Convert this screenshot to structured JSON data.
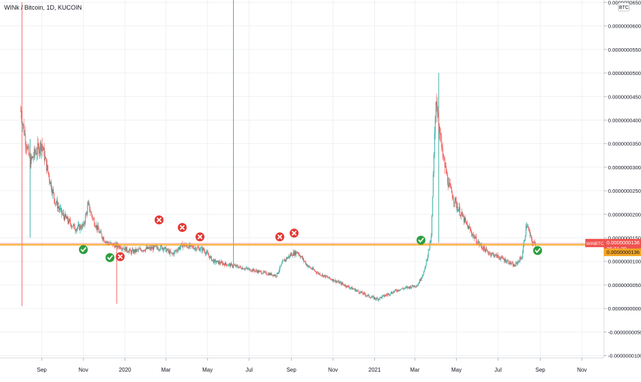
{
  "chart_data": {
    "type": "candlestick",
    "symbol_title": "WINk / Bitcoin, 1D, KUCOIN",
    "currency_badge": "BTC",
    "y_axis": {
      "ticks": [
        "0.0000000650",
        "0.0000000600",
        "0.0000000550",
        "0.0000000500",
        "0.0000000450",
        "0.0000000400",
        "0.0000000350",
        "0.0000000300",
        "0.0000000250",
        "0.0000000200",
        "0.0000000150",
        "0.0000000100",
        "0.0000000050",
        "0.0000000000",
        "-0.0000000050",
        "-0.0000000100"
      ],
      "min": -1.05e-08,
      "max": 6.55e-08
    },
    "x_axis": {
      "ticks": [
        "Sep",
        "Nov",
        "2020",
        "Mar",
        "May",
        "Jul",
        "Sep",
        "Nov",
        "2021",
        "Mar",
        "May",
        "Jul",
        "Sep",
        "Nov"
      ]
    },
    "support_line": 1.36e-08,
    "price_label": {
      "symbol": "WINBTC",
      "price": "0.0000000136",
      "countdown": "06:31:29",
      "line_price": "0.0000000136"
    },
    "series": [
      {
        "date": "2019-08-01",
        "value": 4.2e-08
      },
      {
        "date": "2019-08-08",
        "value": 3.6e-08
      },
      {
        "date": "2019-08-15",
        "value": 3.1e-08
      },
      {
        "date": "2019-08-22",
        "value": 3.3e-08
      },
      {
        "date": "2019-09-01",
        "value": 3.5e-08
      },
      {
        "date": "2019-09-10",
        "value": 2.9e-08
      },
      {
        "date": "2019-09-20",
        "value": 2.3e-08
      },
      {
        "date": "2019-10-01",
        "value": 2e-08
      },
      {
        "date": "2019-10-10",
        "value": 1.85e-08
      },
      {
        "date": "2019-10-20",
        "value": 1.7e-08
      },
      {
        "date": "2019-11-01",
        "value": 1.75e-08
      },
      {
        "date": "2019-11-08",
        "value": 2.2e-08
      },
      {
        "date": "2019-11-15",
        "value": 1.9e-08
      },
      {
        "date": "2019-11-25",
        "value": 1.6e-08
      },
      {
        "date": "2019-12-05",
        "value": 1.4e-08
      },
      {
        "date": "2019-12-15",
        "value": 1.35e-08
      },
      {
        "date": "2019-12-25",
        "value": 1.32e-08
      },
      {
        "date": "2020-01-10",
        "value": 1.2e-08
      },
      {
        "date": "2020-01-25",
        "value": 1.25e-08
      },
      {
        "date": "2020-02-10",
        "value": 1.28e-08
      },
      {
        "date": "2020-02-25",
        "value": 1.3e-08
      },
      {
        "date": "2020-03-10",
        "value": 1.15e-08
      },
      {
        "date": "2020-03-25",
        "value": 1.35e-08
      },
      {
        "date": "2020-04-10",
        "value": 1.3e-08
      },
      {
        "date": "2020-04-25",
        "value": 1.25e-08
      },
      {
        "date": "2020-05-10",
        "value": 1e-08
      },
      {
        "date": "2020-05-25",
        "value": 9.5e-09
      },
      {
        "date": "2020-06-10",
        "value": 9e-09
      },
      {
        "date": "2020-06-25",
        "value": 8.5e-09
      },
      {
        "date": "2020-07-10",
        "value": 8e-09
      },
      {
        "date": "2020-07-25",
        "value": 7.5e-09
      },
      {
        "date": "2020-08-10",
        "value": 7e-09
      },
      {
        "date": "2020-08-20",
        "value": 1e-08
      },
      {
        "date": "2020-09-01",
        "value": 1.15e-08
      },
      {
        "date": "2020-09-10",
        "value": 1.2e-08
      },
      {
        "date": "2020-09-25",
        "value": 9e-09
      },
      {
        "date": "2020-10-10",
        "value": 7.5e-09
      },
      {
        "date": "2020-10-25",
        "value": 6.5e-09
      },
      {
        "date": "2020-11-10",
        "value": 5.5e-09
      },
      {
        "date": "2020-11-25",
        "value": 4.5e-09
      },
      {
        "date": "2020-12-10",
        "value": 3.5e-09
      },
      {
        "date": "2020-12-25",
        "value": 2.5e-09
      },
      {
        "date": "2021-01-05",
        "value": 2e-09
      },
      {
        "date": "2021-01-20",
        "value": 3e-09
      },
      {
        "date": "2021-02-05",
        "value": 4e-09
      },
      {
        "date": "2021-02-20",
        "value": 4.5e-09
      },
      {
        "date": "2021-03-05",
        "value": 5e-09
      },
      {
        "date": "2021-03-15",
        "value": 8e-09
      },
      {
        "date": "2021-03-25",
        "value": 1.5e-08
      },
      {
        "date": "2021-04-01",
        "value": 4.5e-08
      },
      {
        "date": "2021-04-10",
        "value": 3.3e-08
      },
      {
        "date": "2021-04-20",
        "value": 2.6e-08
      },
      {
        "date": "2021-05-01",
        "value": 2.2e-08
      },
      {
        "date": "2021-05-15",
        "value": 1.8e-08
      },
      {
        "date": "2021-06-01",
        "value": 1.4e-08
      },
      {
        "date": "2021-06-15",
        "value": 1.2e-08
      },
      {
        "date": "2021-07-01",
        "value": 1.1e-08
      },
      {
        "date": "2021-07-15",
        "value": 1e-08
      },
      {
        "date": "2021-07-25",
        "value": 9e-09
      },
      {
        "date": "2021-08-05",
        "value": 1.1e-08
      },
      {
        "date": "2021-08-12",
        "value": 1.8e-08
      },
      {
        "date": "2021-08-20",
        "value": 1.4e-08
      },
      {
        "date": "2021-08-25",
        "value": 1.36e-08
      }
    ],
    "markers": [
      {
        "date": "2019-11-01",
        "value": 1.25e-08,
        "kind": "check"
      },
      {
        "date": "2019-12-10",
        "value": 1.08e-08,
        "kind": "check"
      },
      {
        "date": "2019-12-25",
        "value": 1.1e-08,
        "kind": "cross"
      },
      {
        "date": "2020-02-20",
        "value": 1.88e-08,
        "kind": "cross"
      },
      {
        "date": "2020-03-25",
        "value": 1.72e-08,
        "kind": "cross"
      },
      {
        "date": "2020-04-20",
        "value": 1.52e-08,
        "kind": "cross"
      },
      {
        "date": "2020-08-15",
        "value": 1.52e-08,
        "kind": "cross"
      },
      {
        "date": "2020-09-05",
        "value": 1.6e-08,
        "kind": "cross"
      },
      {
        "date": "2021-03-10",
        "value": 1.45e-08,
        "kind": "check"
      },
      {
        "date": "2021-08-28",
        "value": 1.23e-08,
        "kind": "check"
      }
    ]
  }
}
